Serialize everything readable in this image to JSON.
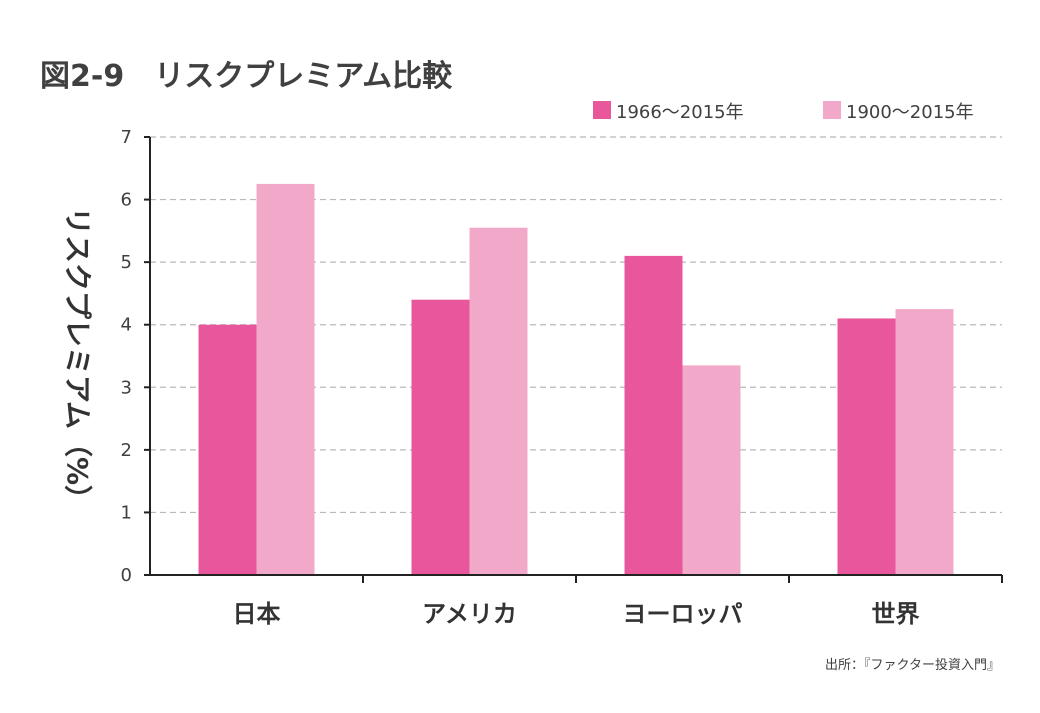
{
  "source": "出所：『ファクター投資入門』",
  "chart_data": {
    "type": "bar",
    "title": "図2-9　リスクプレミアム比較",
    "ylabel": "リスクプレミアム（%）",
    "xlabel": "",
    "categories": [
      "日本",
      "アメリカ",
      "ヨーロッパ",
      "世界"
    ],
    "series": [
      {
        "name": "1966〜2015年",
        "color": "#e8579b",
        "values": [
          4.0,
          4.4,
          5.1,
          4.1
        ]
      },
      {
        "name": "1900〜2015年",
        "color": "#f2a8c9",
        "values": [
          6.25,
          5.55,
          3.35,
          4.25
        ]
      }
    ],
    "ylim": [
      0,
      7
    ],
    "yticks": [
      "0",
      "1",
      "2",
      "3",
      "4",
      "5",
      "6",
      "7"
    ],
    "grid": true,
    "legend_position": "top-right"
  }
}
